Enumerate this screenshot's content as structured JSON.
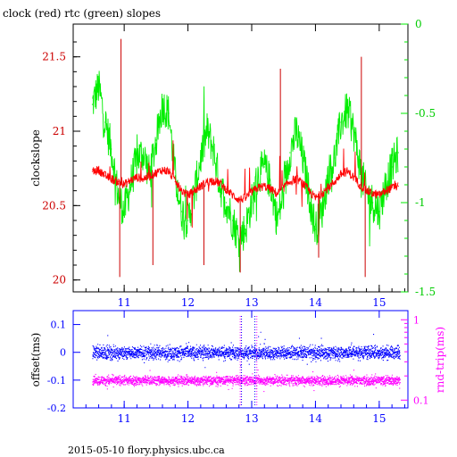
{
  "title": "clock (red) rtc (green) slopes",
  "footer": "2015-05-10 flory.physics.ubc.ca",
  "colors": {
    "red": "#ff0000",
    "darkred": "#cc0000",
    "green": "#00ee00",
    "blue": "#0000ff",
    "magenta": "#ff00ff",
    "black": "#000000"
  },
  "chart_data": [
    {
      "type": "line",
      "title": "clock (red) rtc (green) slopes",
      "ylabel": "clockslope",
      "x_ticks": [
        "11",
        "12",
        "13",
        "14",
        "15"
      ],
      "xlim": [
        10.2,
        15.45
      ],
      "ylim_left": [
        19.92,
        21.72
      ],
      "ylim_right": [
        -1.5,
        0
      ],
      "y_ticks_left": [
        "20",
        "20.5",
        "21",
        "21.5"
      ],
      "y_ticks_right": [
        "0",
        "-0.5",
        "-1",
        "-1.5"
      ],
      "series": [
        {
          "color": "green",
          "axis": "right",
          "x": [
            10.5,
            10.6,
            10.7,
            10.8,
            10.9,
            11.0,
            11.1,
            11.2,
            11.3,
            11.4,
            11.5,
            11.6,
            11.7,
            11.8,
            11.9,
            12.0,
            12.1,
            12.2,
            12.3,
            12.4,
            12.5,
            12.6,
            12.7,
            12.8,
            12.9,
            13.0,
            13.1,
            13.2,
            13.3,
            13.4,
            13.5,
            13.6,
            13.7,
            13.8,
            13.9,
            14.0,
            14.1,
            14.2,
            14.3,
            14.4,
            14.5,
            14.6,
            14.7,
            14.8,
            14.9,
            15.0,
            15.1,
            15.2,
            15.3
          ],
          "y": [
            -0.45,
            -0.35,
            -0.55,
            -0.7,
            -0.95,
            -1.05,
            -0.9,
            -0.75,
            -0.72,
            -0.85,
            -0.65,
            -0.45,
            -0.5,
            -0.85,
            -1.05,
            -1.1,
            -0.95,
            -0.75,
            -0.6,
            -0.7,
            -0.9,
            -1.0,
            -1.1,
            -1.2,
            -1.15,
            -1.0,
            -0.85,
            -0.8,
            -0.9,
            -1.1,
            -0.95,
            -0.72,
            -0.6,
            -0.75,
            -0.95,
            -1.15,
            -1.05,
            -0.85,
            -0.75,
            -0.55,
            -0.48,
            -0.6,
            -0.8,
            -0.95,
            -1.0,
            -1.05,
            -0.9,
            -0.8,
            -0.72
          ]
        },
        {
          "color": "red",
          "axis": "left",
          "x": [
            10.5,
            10.6,
            10.7,
            10.8,
            10.9,
            11.0,
            11.1,
            11.2,
            11.3,
            11.4,
            11.5,
            11.6,
            11.7,
            11.8,
            11.9,
            12.0,
            12.1,
            12.2,
            12.3,
            12.4,
            12.5,
            12.6,
            12.7,
            12.8,
            12.9,
            13.0,
            13.1,
            13.2,
            13.3,
            13.4,
            13.5,
            13.6,
            13.7,
            13.8,
            13.9,
            14.0,
            14.1,
            14.2,
            14.3,
            14.4,
            14.5,
            14.6,
            14.7,
            14.8,
            14.9,
            15.0,
            15.1,
            15.2,
            15.3
          ],
          "y": [
            20.73,
            20.74,
            20.7,
            20.68,
            20.66,
            20.64,
            20.67,
            20.69,
            20.68,
            20.7,
            20.72,
            20.74,
            20.73,
            20.66,
            20.6,
            20.57,
            20.6,
            20.63,
            20.66,
            20.67,
            20.65,
            20.61,
            20.57,
            20.54,
            20.55,
            20.59,
            20.62,
            20.63,
            20.61,
            20.58,
            20.62,
            20.66,
            20.68,
            20.65,
            20.6,
            20.55,
            20.58,
            20.62,
            20.66,
            20.71,
            20.73,
            20.69,
            20.64,
            20.6,
            20.58,
            20.57,
            20.6,
            20.62,
            20.63
          ]
        }
      ]
    },
    {
      "type": "scatter",
      "ylabel_left": "offset(ms)",
      "ylabel_right": "rnd-trip(ms)",
      "x_ticks": [
        "11",
        "12",
        "13",
        "14",
        "15"
      ],
      "xlim": [
        10.2,
        15.45
      ],
      "ylim_left": [
        -0.2,
        0.15
      ],
      "y_ticks_left": [
        "0.1",
        "0",
        "-0.1",
        "-0.2"
      ],
      "y_ticks_right": [
        "1",
        "0.1"
      ],
      "series": [
        {
          "color": "blue",
          "axis": "left",
          "center": 0.0,
          "spread": 0.035
        },
        {
          "color": "magenta",
          "axis": "right",
          "center": -0.1,
          "spread": 0.025
        }
      ]
    }
  ]
}
